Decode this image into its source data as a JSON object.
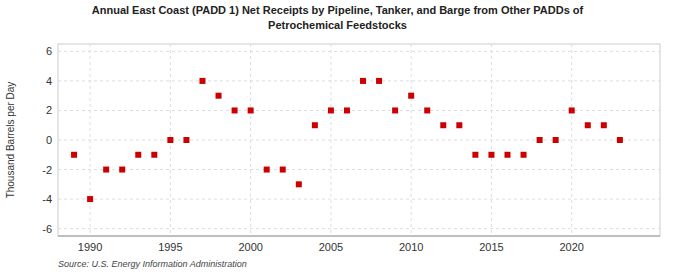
{
  "chart_data": {
    "type": "scatter",
    "title": "Annual East Coast (PADD 1) Net Receipts by Pipeline, Tanker, and Barge from Other PADDs of",
    "subtitle": "Petrochemical Feedstocks",
    "y_label": "Thousand Barrels per Day",
    "annotations": [
      "Source: U.S. Energy Information Administration"
    ],
    "x": [
      1989,
      1990,
      1991,
      1992,
      1993,
      1994,
      1995,
      1996,
      1997,
      1998,
      1999,
      2000,
      2001,
      2002,
      2003,
      2004,
      2005,
      2006,
      2007,
      2008,
      2009,
      2010,
      2011,
      2012,
      2013,
      2014,
      2015,
      2016,
      2017,
      2018,
      2019,
      2020,
      2021,
      2022,
      2023
    ],
    "values": [
      -1,
      -4,
      -2,
      -2,
      -1,
      -1,
      0,
      0,
      4,
      3,
      2,
      2,
      -2,
      -2,
      -3,
      1,
      2,
      2,
      4,
      4,
      2,
      3,
      2,
      1,
      1,
      -1,
      -1,
      -1,
      -1,
      0,
      0,
      2,
      1,
      1,
      0
    ],
    "xlim": [
      1988.0,
      2025.5
    ],
    "ylim": [
      -6.5,
      6.5
    ],
    "xticks": [
      1990,
      1995,
      2000,
      2005,
      2010,
      2015,
      2020
    ],
    "yticks": [
      -6,
      -4,
      -2,
      0,
      2,
      4,
      6
    ],
    "color": "#cc0000",
    "marker": "square",
    "grid": true
  }
}
